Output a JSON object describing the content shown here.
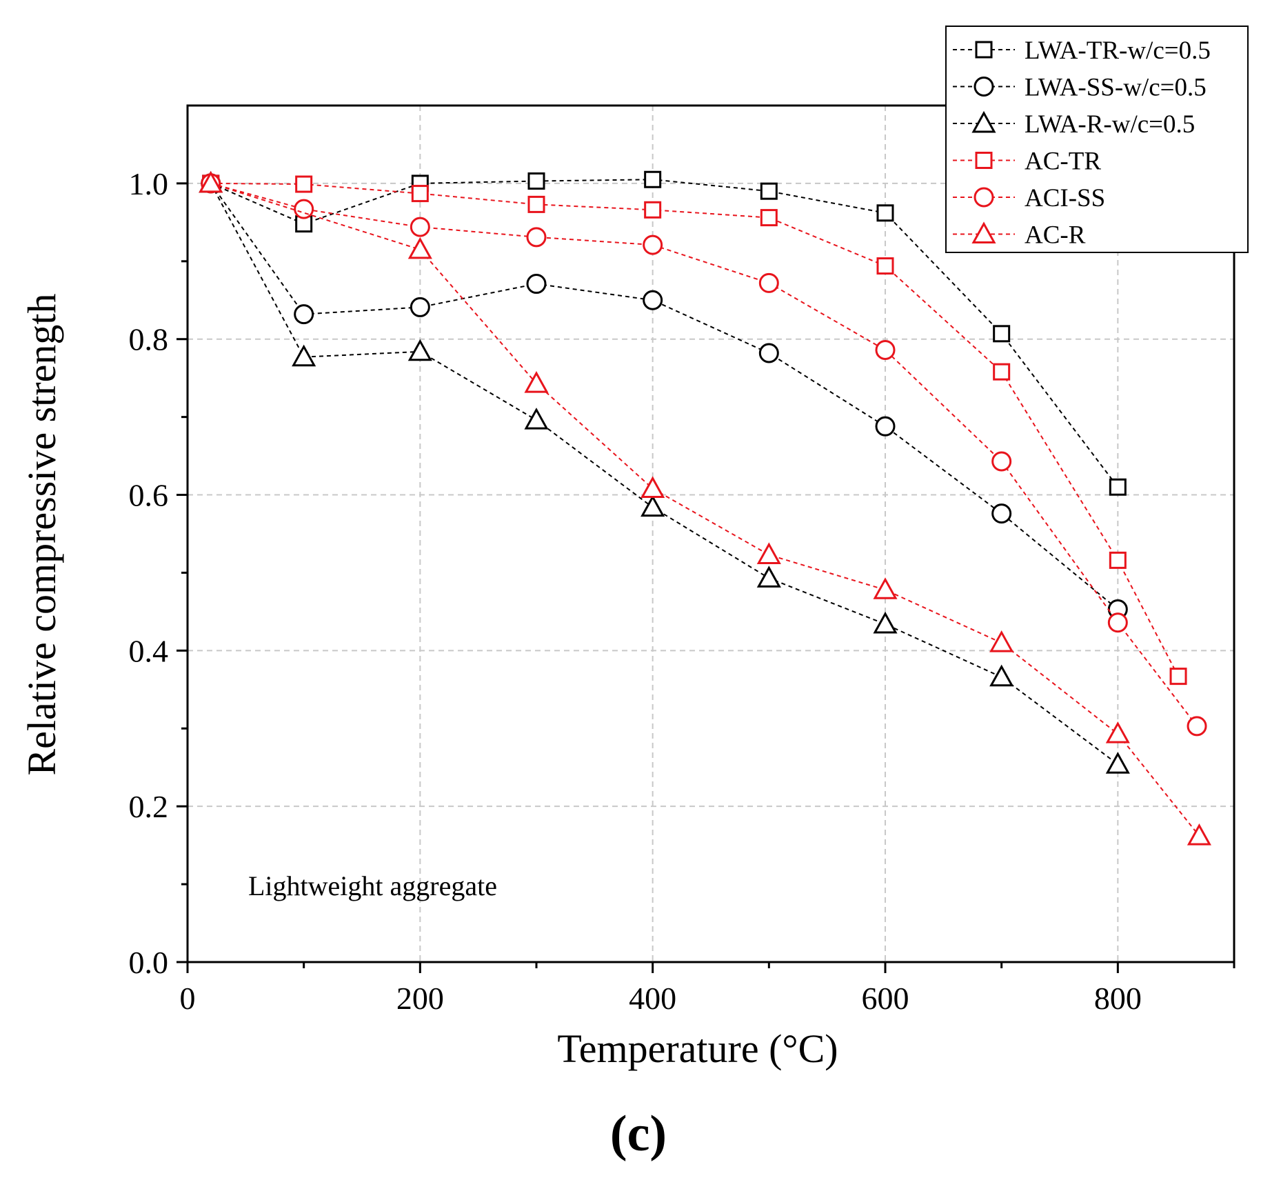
{
  "chart_data": {
    "type": "line",
    "xlabel": "Temperature (°C)",
    "ylabel": "Relative compressive strength",
    "xlim": [
      0,
      900
    ],
    "ylim": [
      0.0,
      1.1
    ],
    "xticks": [
      0,
      200,
      400,
      600,
      800
    ],
    "xtick_labels": [
      "0",
      "200",
      "400",
      "600",
      "800"
    ],
    "yticks": [
      0.0,
      0.2,
      0.4,
      0.6,
      0.8,
      1.0
    ],
    "ytick_labels": [
      "0.0",
      "0.2",
      "0.4",
      "0.6",
      "0.8",
      "1.0"
    ],
    "grid": true,
    "legend_position": "top-right",
    "annotation": "Lightweight aggregate",
    "panel_label": "(c)",
    "series": [
      {
        "name": "LWA-TR-w/c=0.5",
        "color": "#000000",
        "marker": "square",
        "x": [
          20,
          100,
          200,
          300,
          400,
          500,
          600,
          700,
          800
        ],
        "y": [
          1.0,
          0.948,
          1.0,
          1.003,
          1.005,
          0.99,
          0.962,
          0.807,
          0.61
        ]
      },
      {
        "name": "LWA-SS-w/c=0.5",
        "color": "#000000",
        "marker": "circle",
        "x": [
          20,
          100,
          200,
          300,
          400,
          500,
          600,
          700,
          800
        ],
        "y": [
          1.0,
          0.832,
          0.841,
          0.871,
          0.85,
          0.782,
          0.688,
          0.576,
          0.453
        ]
      },
      {
        "name": "LWA-R-w/c=0.5",
        "color": "#000000",
        "marker": "triangle",
        "x": [
          20,
          100,
          200,
          300,
          400,
          500,
          600,
          700,
          800
        ],
        "y": [
          1.0,
          0.777,
          0.784,
          0.696,
          0.584,
          0.493,
          0.434,
          0.366,
          0.254
        ]
      },
      {
        "name": "AC-TR",
        "color": "#e8141c",
        "marker": "square",
        "x": [
          20,
          100,
          200,
          300,
          400,
          500,
          600,
          700,
          800,
          852
        ],
        "y": [
          1.0,
          0.999,
          0.987,
          0.973,
          0.966,
          0.956,
          0.894,
          0.758,
          0.516,
          0.367
        ]
      },
      {
        "name": "ACI-SS",
        "color": "#e8141c",
        "marker": "circle",
        "x": [
          20,
          100,
          200,
          300,
          400,
          500,
          600,
          700,
          800,
          868
        ],
        "y": [
          1.0,
          0.967,
          0.944,
          0.931,
          0.921,
          0.872,
          0.786,
          0.643,
          0.436,
          0.303
        ]
      },
      {
        "name": "AC-R",
        "color": "#e8141c",
        "marker": "triangle",
        "x": [
          20,
          200,
          300,
          400,
          500,
          600,
          700,
          800,
          870
        ],
        "y": [
          1.0,
          0.915,
          0.743,
          0.608,
          0.523,
          0.478,
          0.41,
          0.293,
          0.162
        ]
      }
    ]
  }
}
